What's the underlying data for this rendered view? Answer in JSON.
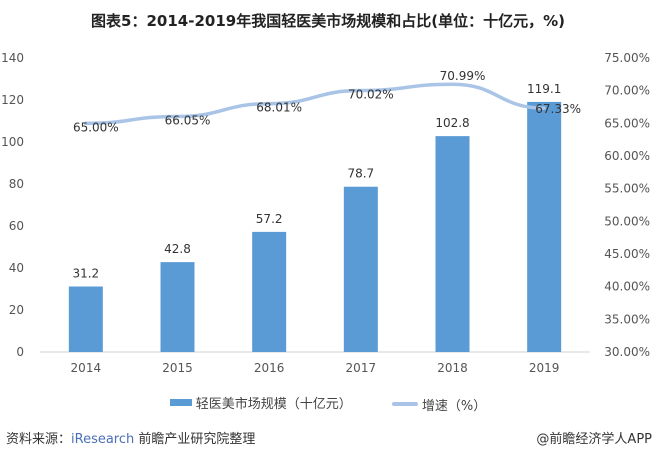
{
  "title": "图表5：2014-2019年我国轻医美市场规模和占比(单位：十亿元，%)",
  "chart_data": {
    "type": "bar",
    "title": "图表5：2014-2019年我国轻医美市场规模和占比(单位：十亿元，%)",
    "categories": [
      "2014",
      "2015",
      "2016",
      "2017",
      "2018",
      "2019"
    ],
    "series": [
      {
        "name": "轻医美市场规模（十亿元）",
        "type": "bar",
        "axis": "left",
        "values": [
          31.2,
          42.8,
          57.2,
          78.7,
          102.8,
          119.1
        ],
        "color": "#5b9bd5"
      },
      {
        "name": "增速（%）",
        "type": "line",
        "axis": "right",
        "values": [
          65.0,
          66.05,
          68.01,
          70.02,
          70.99,
          67.33
        ],
        "color": "#a9c4e6"
      }
    ],
    "ylim": [
      0,
      140
    ],
    "yticks": [
      0,
      20,
      40,
      60,
      80,
      100,
      120,
      140
    ],
    "y2lim": [
      30,
      75
    ],
    "y2ticks": [
      "30.00%",
      "35.00%",
      "40.00%",
      "45.00%",
      "50.00%",
      "55.00%",
      "60.00%",
      "65.00%",
      "70.00%",
      "75.00%"
    ],
    "grid": false,
    "legend": "bottom"
  },
  "source": {
    "prefix": "资料来源：",
    "highlight": "iResearch",
    "suffix": " 前瞻产业研究院整理"
  },
  "brand": "@前瞻经济学人APP"
}
